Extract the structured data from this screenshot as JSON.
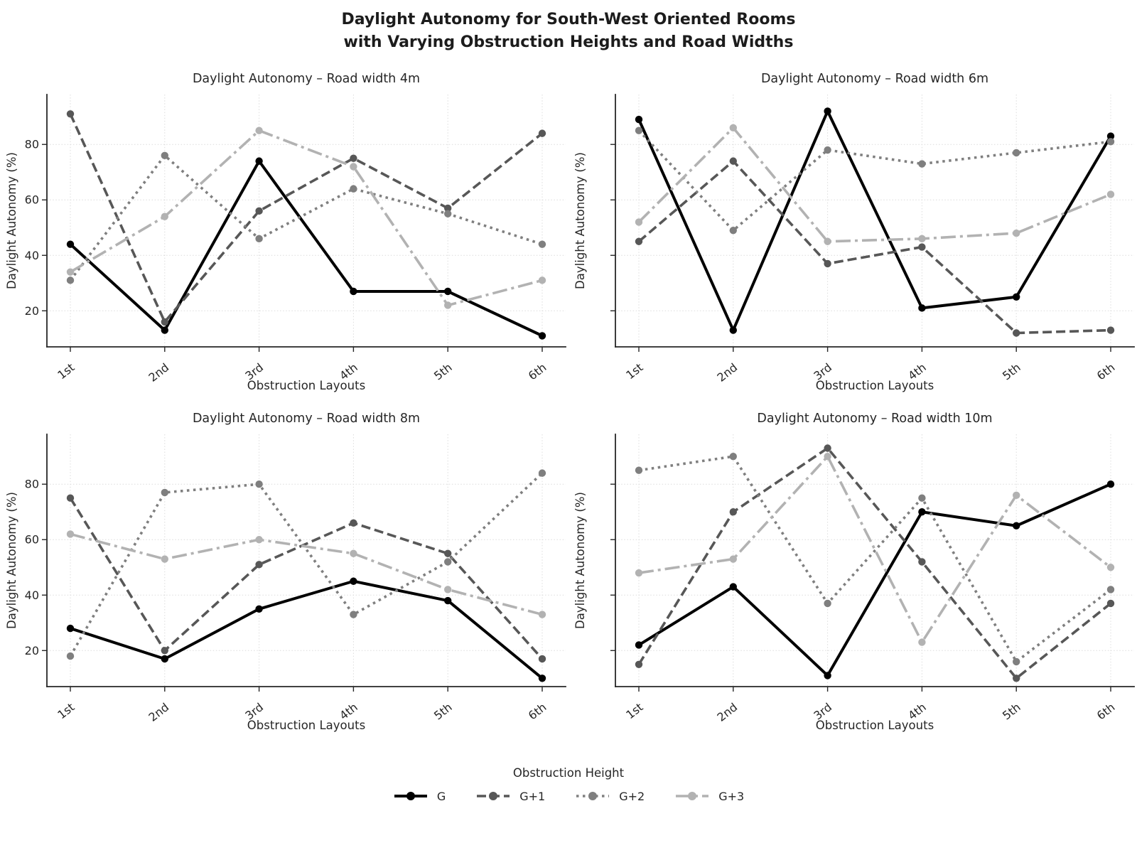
{
  "page_title": {
    "line1": "Daylight Autonomy for South-West Oriented Rooms",
    "line2": "with Varying Obstruction Heights and Road Widths"
  },
  "chart_data": {
    "type": "line",
    "categories": [
      "1st",
      "2nd",
      "3rd",
      "4th",
      "5th",
      "6th"
    ],
    "xlabel": "Obstruction Layouts",
    "ylabel": "Daylight Autonomy (%)",
    "ylim": [
      7,
      98
    ],
    "yticks": [
      20,
      40,
      60,
      80
    ],
    "grid": true,
    "legend_position": "bottom-center",
    "series_styles": [
      {
        "name": "G",
        "color": "#000000",
        "dash": "solid",
        "line_width": 4.0
      },
      {
        "name": "G+1",
        "color": "#575757",
        "dash": "dashed",
        "line_width": 3.6
      },
      {
        "name": "G+2",
        "color": "#7f7f7f",
        "dash": "dotted",
        "line_width": 3.6
      },
      {
        "name": "G+3",
        "color": "#b2b2b2",
        "dash": "dashdot",
        "line_width": 3.6
      }
    ],
    "subplots": [
      {
        "title": "Daylight Autonomy – Road width 4m",
        "show_ytick_labels": true,
        "series": [
          {
            "name": "G",
            "values": [
              44,
              13,
              74,
              27,
              27,
              11
            ]
          },
          {
            "name": "G+1",
            "values": [
              91,
              16,
              56,
              75,
              57,
              84
            ]
          },
          {
            "name": "G+2",
            "values": [
              31,
              76,
              46,
              64,
              55,
              44
            ]
          },
          {
            "name": "G+3",
            "values": [
              34,
              54,
              85,
              72,
              22,
              31
            ]
          }
        ]
      },
      {
        "title": "Daylight Autonomy – Road width 6m",
        "show_ytick_labels": false,
        "series": [
          {
            "name": "G",
            "values": [
              89,
              13,
              92,
              21,
              25,
              83
            ]
          },
          {
            "name": "G+1",
            "values": [
              45,
              74,
              37,
              43,
              12,
              13
            ]
          },
          {
            "name": "G+2",
            "values": [
              85,
              49,
              78,
              73,
              77,
              81
            ]
          },
          {
            "name": "G+3",
            "values": [
              52,
              86,
              45,
              46,
              48,
              62
            ]
          }
        ]
      },
      {
        "title": "Daylight Autonomy – Road width 8m",
        "show_ytick_labels": true,
        "series": [
          {
            "name": "G",
            "values": [
              28,
              17,
              35,
              45,
              38,
              10
            ]
          },
          {
            "name": "G+1",
            "values": [
              75,
              20,
              51,
              66,
              55,
              17
            ]
          },
          {
            "name": "G+2",
            "values": [
              18,
              77,
              80,
              33,
              52,
              84
            ]
          },
          {
            "name": "G+3",
            "values": [
              62,
              53,
              60,
              55,
              42,
              33
            ]
          }
        ]
      },
      {
        "title": "Daylight Autonomy – Road width 10m",
        "show_ytick_labels": false,
        "series": [
          {
            "name": "G",
            "values": [
              22,
              43,
              11,
              70,
              65,
              80
            ]
          },
          {
            "name": "G+1",
            "values": [
              15,
              70,
              93,
              52,
              10,
              37
            ]
          },
          {
            "name": "G+2",
            "values": [
              85,
              90,
              37,
              75,
              16,
              42
            ]
          },
          {
            "name": "G+3",
            "values": [
              48,
              53,
              90,
              23,
              76,
              50
            ]
          }
        ]
      }
    ]
  },
  "legend": {
    "title": "Obstruction Height",
    "entries": [
      "G",
      "G+1",
      "G+2",
      "G+3"
    ]
  }
}
